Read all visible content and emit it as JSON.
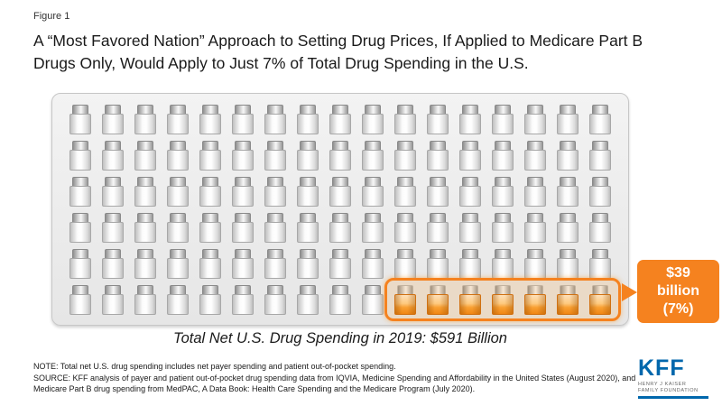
{
  "figure_label": "Figure 1",
  "title": "A “Most Favored Nation” Approach to Setting Drug Prices, If Applied to Medicare Part B Drugs Only, Would Apply to Just 7% of Total Drug Spending in the U.S.",
  "caption": "Total Net U.S. Drug Spending in 2019: $591 Billion",
  "callout": {
    "value": "$39",
    "unit": "billion",
    "percent": "(7%)"
  },
  "note": "NOTE: Total net U.S. drug spending includes net payer spending and patient out-of-pocket spending.",
  "source": "SOURCE: KFF analysis of payer and patient out-of-pocket drug spending data from IQVIA, Medicine Spending and Affordability in the United States (August 2020), and Medicare Part B drug spending from MedPAC, A Data Book: Health Care Spending and the Medicare Program (July 2020).",
  "logo": {
    "text": "KFF",
    "tagline1": "HENRY J KAISER",
    "tagline2": "FAMILY FOUNDATION"
  },
  "chart_data": {
    "type": "pictograph",
    "icon": "pill-bottle",
    "title": "A “Most Favored Nation” Approach to Setting Drug Prices, If Applied to Medicare Part B Drugs Only, Would Apply to Just 7% of Total Drug Spending in the U.S.",
    "grid": {
      "rows": 6,
      "columns": 17
    },
    "total_units": 102,
    "highlighted_units": 7,
    "highlight_position": "bottom-right",
    "total_label": "Total Net U.S. Drug Spending in 2019: $591 Billion",
    "total_value_billions_usd": 591,
    "highlighted_value_billions_usd": 39,
    "highlighted_percent": 7,
    "highlighted_value_label": "$39 billion (7%)",
    "colors": {
      "highlight_orange": "#f5821f",
      "bottle_body": "#ffffff",
      "bottle_cap": "#999999",
      "panel_gray": "#ececec",
      "kff_blue": "#0067ac"
    }
  }
}
